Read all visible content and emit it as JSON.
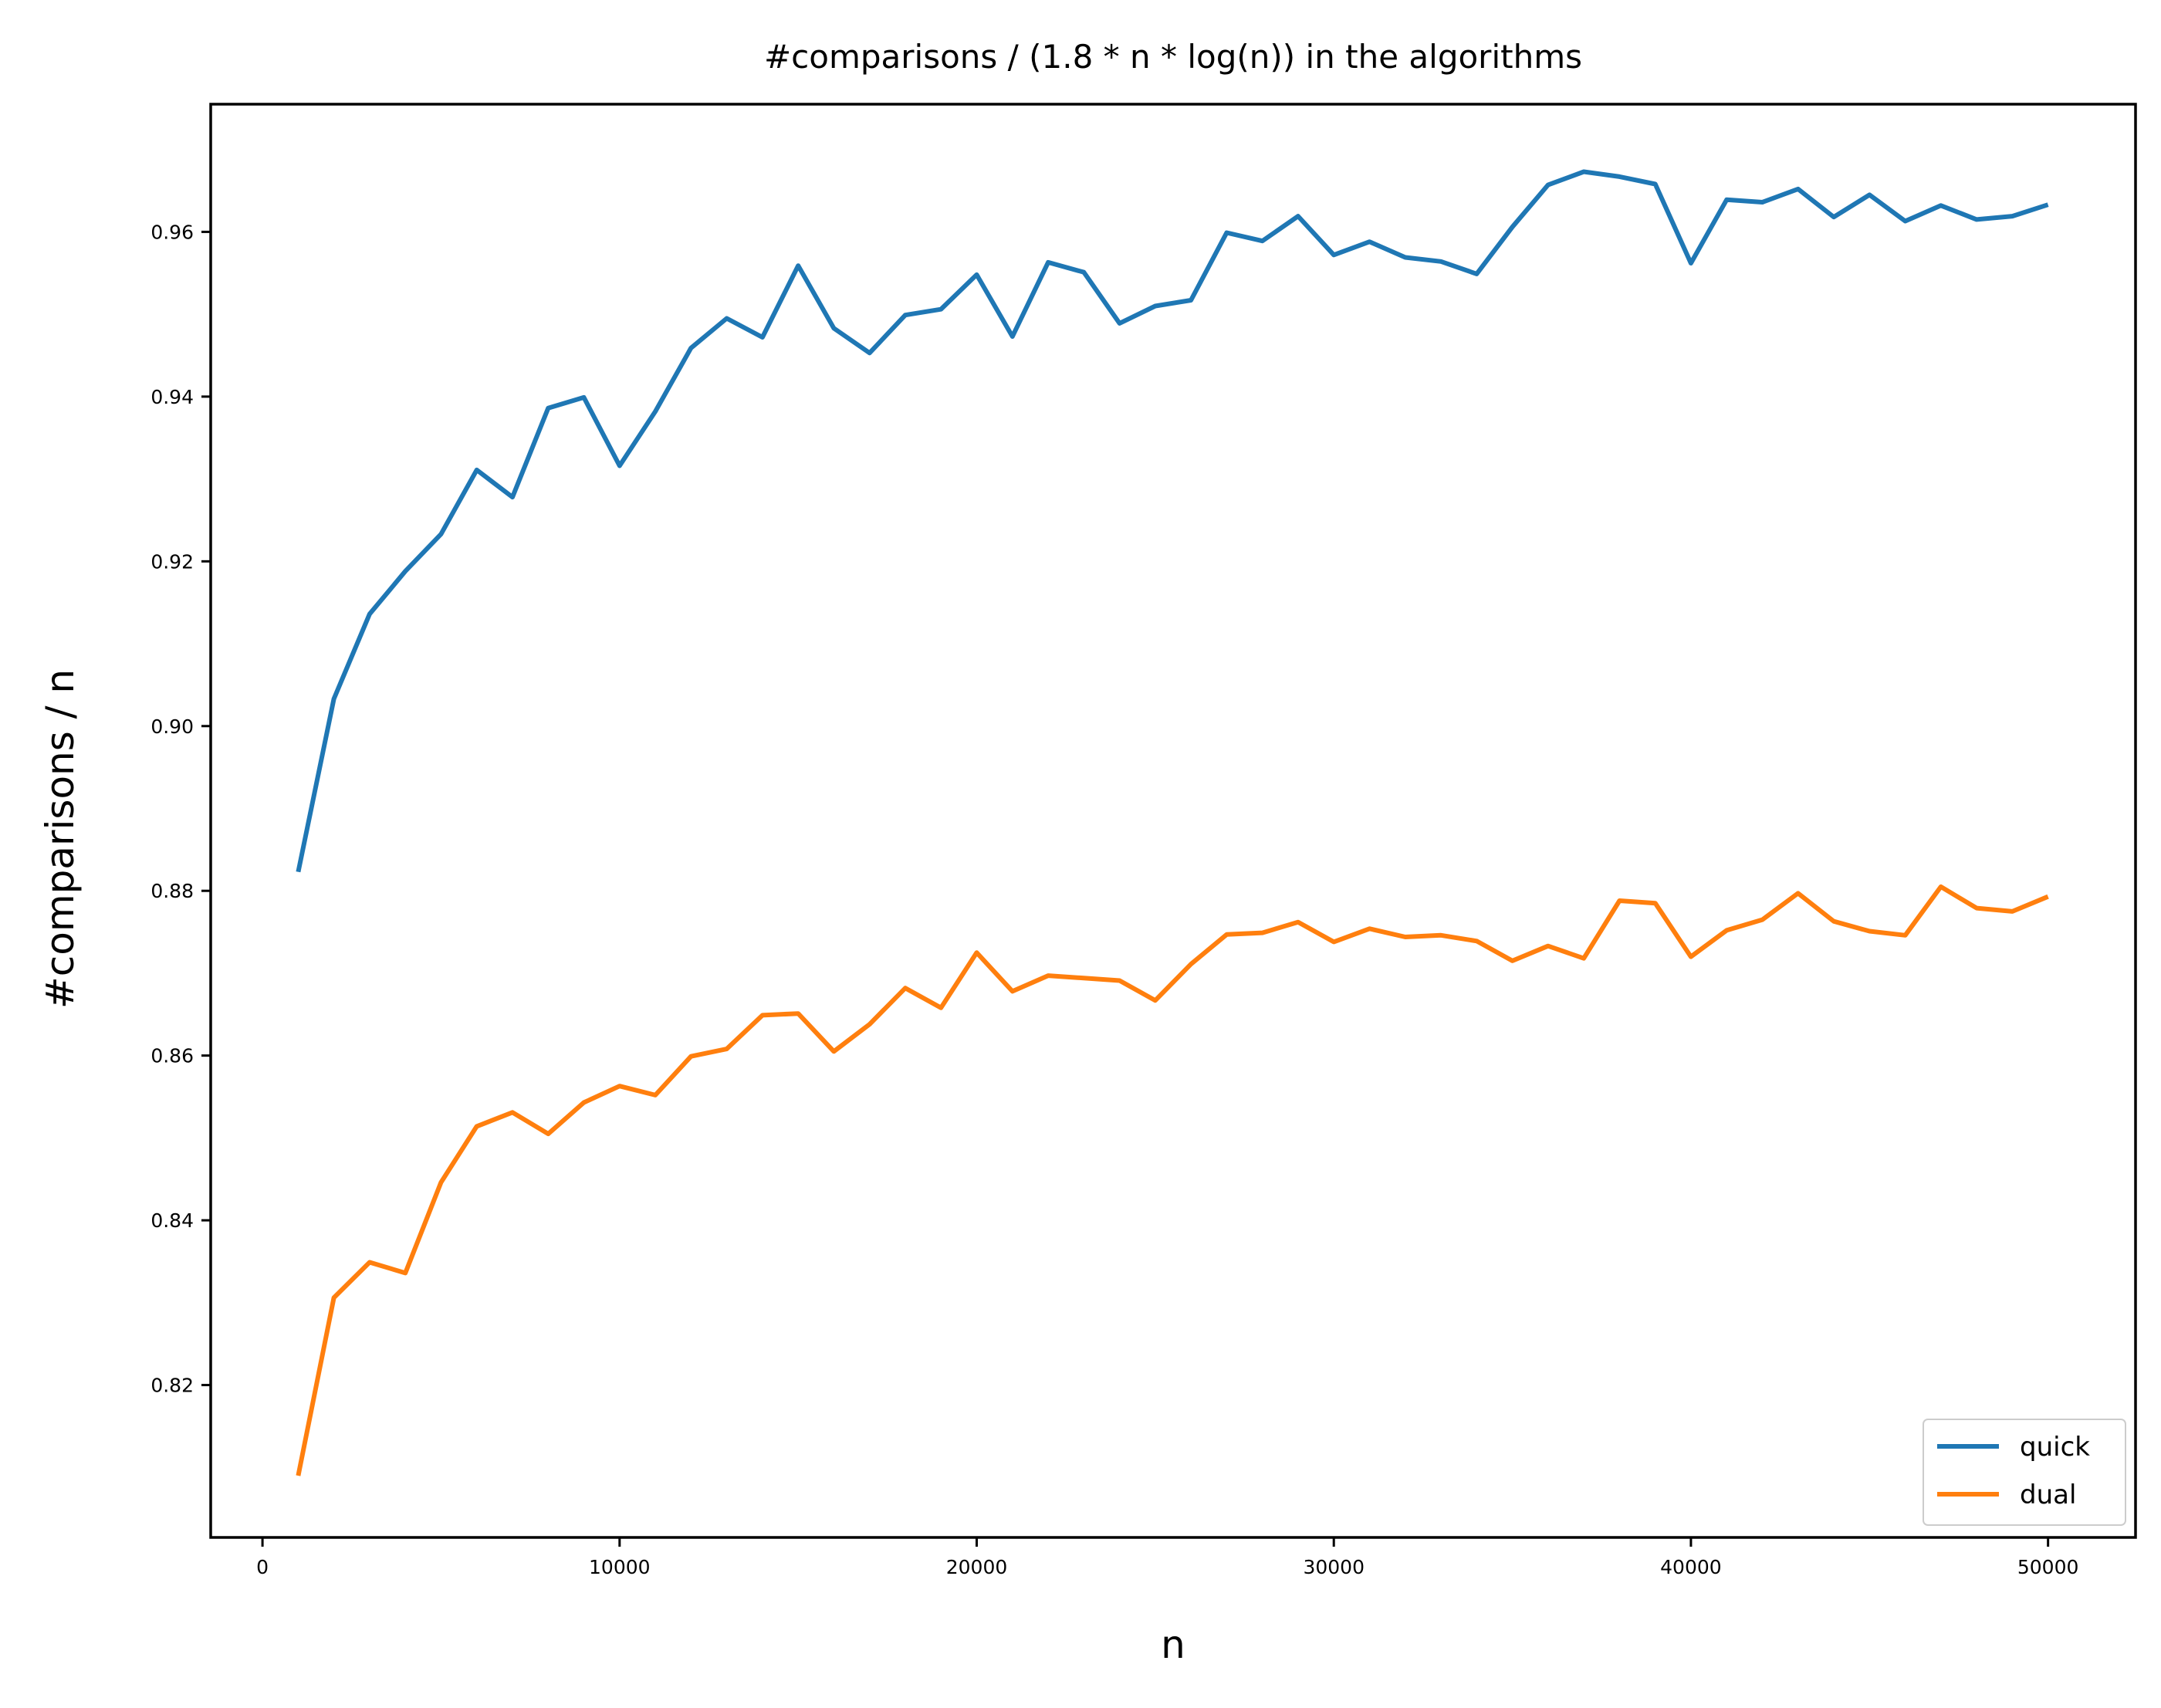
{
  "chart_data": {
    "type": "line",
    "title": "#comparisons / (1.8 * n * log(n)) in the algorithms",
    "xlabel": "n",
    "ylabel": "#comparisons / n",
    "xlim": [
      -1450,
      52450
    ],
    "ylim": [
      0.8015,
      0.9755
    ],
    "xticks": [
      0,
      10000,
      20000,
      30000,
      40000,
      50000
    ],
    "yticks": [
      0.82,
      0.84,
      0.86,
      0.88,
      0.9,
      0.92,
      0.94,
      0.96
    ],
    "ytick_labels": [
      "0.82",
      "0.84",
      "0.86",
      "0.88",
      "0.90",
      "0.92",
      "0.94",
      "0.96"
    ],
    "grid": false,
    "legend": {
      "position": "lower-right"
    },
    "x": [
      1000,
      2000,
      3000,
      4000,
      5000,
      6000,
      7000,
      8000,
      9000,
      10000,
      11000,
      12000,
      13000,
      14000,
      15000,
      16000,
      17000,
      18000,
      19000,
      20000,
      21000,
      22000,
      23000,
      24000,
      25000,
      26000,
      27000,
      28000,
      29000,
      30000,
      31000,
      32000,
      33000,
      34000,
      35000,
      36000,
      37000,
      38000,
      39000,
      40000,
      41000,
      42000,
      43000,
      44000,
      45000,
      46000,
      47000,
      48000,
      49000,
      50000
    ],
    "series": [
      {
        "name": "quick",
        "color": "#1f77b4",
        "values": [
          0.8823,
          0.9033,
          0.9136,
          0.9188,
          0.9233,
          0.9311,
          0.9278,
          0.9386,
          0.9399,
          0.9316,
          0.9382,
          0.9459,
          0.9495,
          0.9472,
          0.9559,
          0.9483,
          0.9453,
          0.9499,
          0.9506,
          0.9548,
          0.9473,
          0.9563,
          0.9551,
          0.9489,
          0.951,
          0.9517,
          0.9599,
          0.9589,
          0.9619,
          0.9572,
          0.9588,
          0.9569,
          0.9564,
          0.9549,
          0.9606,
          0.9657,
          0.9673,
          0.9667,
          0.9658,
          0.9562,
          0.9639,
          0.9636,
          0.9652,
          0.9618,
          0.9645,
          0.9613,
          0.9632,
          0.9615,
          0.9619,
          0.9633
        ]
      },
      {
        "name": "dual",
        "color": "#ff7f0e",
        "values": [
          0.809,
          0.8306,
          0.8349,
          0.8336,
          0.8446,
          0.8514,
          0.8531,
          0.8505,
          0.8543,
          0.8563,
          0.8552,
          0.8599,
          0.8608,
          0.8649,
          0.8651,
          0.8605,
          0.8638,
          0.8682,
          0.8658,
          0.8725,
          0.8678,
          0.8697,
          0.8694,
          0.8691,
          0.8667,
          0.8711,
          0.8747,
          0.8749,
          0.8762,
          0.8738,
          0.8754,
          0.8744,
          0.8746,
          0.8739,
          0.8715,
          0.8733,
          0.8718,
          0.8788,
          0.8785,
          0.872,
          0.8752,
          0.8765,
          0.8797,
          0.8763,
          0.8751,
          0.8746,
          0.8805,
          0.8779,
          0.8775,
          0.8793
        ]
      }
    ]
  }
}
